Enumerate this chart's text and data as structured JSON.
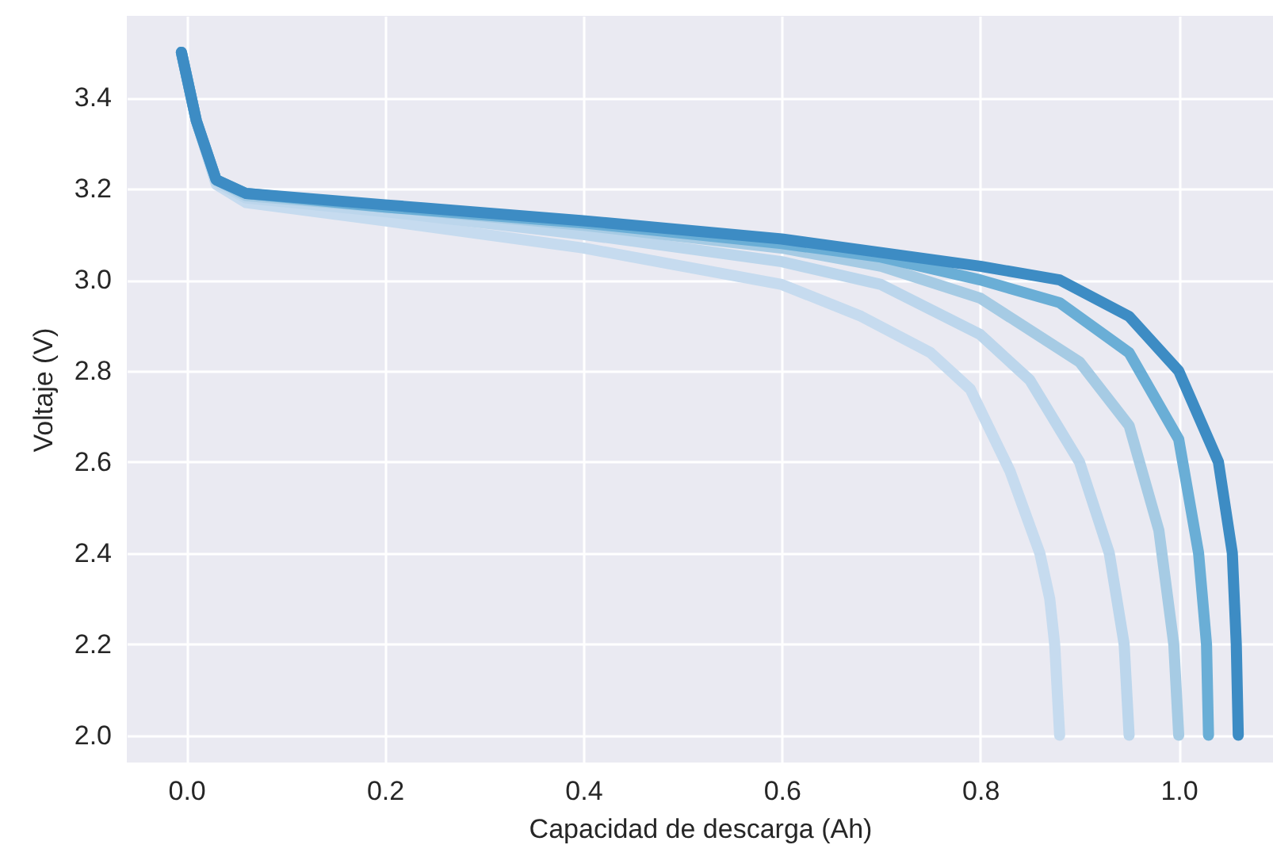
{
  "chart_data": {
    "type": "line",
    "xlabel": "Capacidad de descarga (Ah)",
    "ylabel": "Voltaje (V)",
    "xlim": [
      -0.06,
      1.095
    ],
    "ylim": [
      1.94,
      3.58
    ],
    "xticks": [
      {
        "value": 0,
        "label": "0.0"
      },
      0.2,
      0.4,
      0.6,
      0.8,
      {
        "value": 1,
        "label": "1.0"
      }
    ],
    "yticks": [
      {
        "value": 2,
        "label": "2.0"
      },
      2.2,
      2.4,
      2.6,
      2.8,
      {
        "value": 3,
        "label": "3.0"
      },
      3.2,
      3.4
    ],
    "grid": true,
    "marker": "none",
    "line_style": "solid",
    "series": [
      {
        "color": "#c6dbef",
        "x": [
          -0.005,
          0.01,
          0.03,
          0.06,
          0.2,
          0.4,
          0.6,
          0.68,
          0.75,
          0.79,
          0.83,
          0.86,
          0.87,
          0.875,
          0.88
        ],
        "values": [
          3.5,
          3.35,
          3.21,
          3.17,
          3.13,
          3.07,
          2.99,
          2.92,
          2.84,
          2.76,
          2.58,
          2.4,
          2.3,
          2.2,
          2.0
        ]
      },
      {
        "color": "#bcd6ec",
        "x": [
          -0.005,
          0.01,
          0.03,
          0.06,
          0.2,
          0.4,
          0.6,
          0.7,
          0.8,
          0.85,
          0.9,
          0.93,
          0.945,
          0.95
        ],
        "values": [
          3.5,
          3.35,
          3.215,
          3.18,
          3.15,
          3.1,
          3.04,
          2.99,
          2.88,
          2.78,
          2.6,
          2.4,
          2.2,
          2.0
        ]
      },
      {
        "color": "#a6cbe4",
        "x": [
          -0.005,
          0.01,
          0.03,
          0.06,
          0.2,
          0.4,
          0.6,
          0.7,
          0.8,
          0.9,
          0.95,
          0.98,
          0.995,
          1.0
        ],
        "values": [
          3.5,
          3.35,
          3.22,
          3.185,
          3.16,
          3.12,
          3.07,
          3.03,
          2.96,
          2.82,
          2.68,
          2.45,
          2.2,
          2.0
        ]
      },
      {
        "color": "#6aaed6",
        "x": [
          -0.005,
          0.01,
          0.03,
          0.06,
          0.2,
          0.4,
          0.6,
          0.7,
          0.8,
          0.88,
          0.95,
          1.0,
          1.02,
          1.028,
          1.03
        ],
        "values": [
          3.5,
          3.35,
          3.22,
          3.19,
          3.16,
          3.125,
          3.08,
          3.05,
          3.0,
          2.95,
          2.84,
          2.65,
          2.4,
          2.2,
          2.0
        ]
      },
      {
        "color": "#3d8cc4",
        "x": [
          -0.005,
          0.01,
          0.03,
          0.06,
          0.2,
          0.4,
          0.6,
          0.7,
          0.8,
          0.88,
          0.95,
          1.0,
          1.04,
          1.054,
          1.058,
          1.06
        ],
        "values": [
          3.5,
          3.35,
          3.22,
          3.19,
          3.165,
          3.13,
          3.09,
          3.06,
          3.03,
          3.0,
          2.92,
          2.8,
          2.6,
          2.4,
          2.2,
          2.0
        ]
      }
    ]
  }
}
